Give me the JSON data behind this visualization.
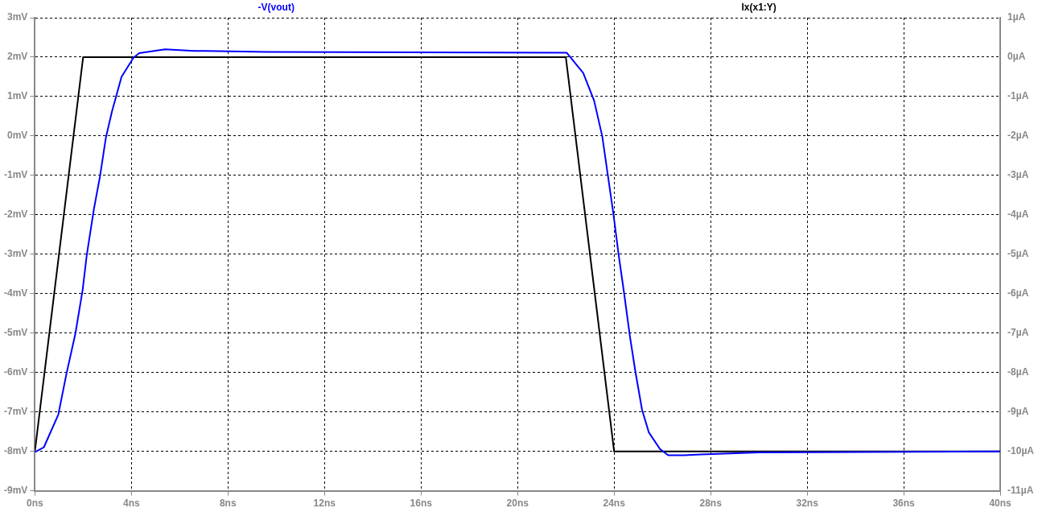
{
  "chart_data": {
    "type": "line",
    "xlim": [
      0,
      40
    ],
    "xticks": [
      {
        "value": 0,
        "label": "0ns"
      },
      {
        "value": 4,
        "label": "4ns"
      },
      {
        "value": 8,
        "label": "8ns"
      },
      {
        "value": 12,
        "label": "12ns"
      },
      {
        "value": 16,
        "label": "16ns"
      },
      {
        "value": 20,
        "label": "20ns"
      },
      {
        "value": 24,
        "label": "24ns"
      },
      {
        "value": 28,
        "label": "28ns"
      },
      {
        "value": 32,
        "label": "32ns"
      },
      {
        "value": 36,
        "label": "36ns"
      },
      {
        "value": 40,
        "label": "40ns"
      }
    ],
    "ylim": [
      -9,
      3
    ],
    "yticks": [
      {
        "value": -9,
        "label": "-9mV"
      },
      {
        "value": -8,
        "label": "-8mV"
      },
      {
        "value": -7,
        "label": "-7mV"
      },
      {
        "value": -6,
        "label": "-6mV"
      },
      {
        "value": -5,
        "label": "-5mV"
      },
      {
        "value": -4,
        "label": "-4mV"
      },
      {
        "value": -3,
        "label": "-3mV"
      },
      {
        "value": -2,
        "label": "-2mV"
      },
      {
        "value": -1,
        "label": "-1mV"
      },
      {
        "value": 0,
        "label": "0mV"
      },
      {
        "value": 1,
        "label": "1mV"
      },
      {
        "value": 2,
        "label": "2mV"
      },
      {
        "value": 3,
        "label": "3mV"
      }
    ],
    "y2lim": [
      -11,
      1
    ],
    "y2ticks": [
      {
        "value": -11,
        "label": "-11µA"
      },
      {
        "value": -10,
        "label": "-10µA"
      },
      {
        "value": -9,
        "label": "-9µA"
      },
      {
        "value": -8,
        "label": "-8µA"
      },
      {
        "value": -7,
        "label": "-7µA"
      },
      {
        "value": -6,
        "label": "-6µA"
      },
      {
        "value": -5,
        "label": "-5µA"
      },
      {
        "value": -4,
        "label": "-4µA"
      },
      {
        "value": -3,
        "label": "-3µA"
      },
      {
        "value": -2,
        "label": "-2µA"
      },
      {
        "value": -1,
        "label": "-1µA"
      },
      {
        "value": 0,
        "label": "0µA"
      },
      {
        "value": 1,
        "label": "1µA"
      }
    ],
    "grid": true,
    "legend": false,
    "marker": "none",
    "line_style": "solid",
    "series": [
      {
        "name": "-V(vout)",
        "color": "#0000ff",
        "x": [
          0,
          0.37,
          0.97,
          1.31,
          1.68,
          1.98,
          2.15,
          2.45,
          2.7,
          2.94,
          3.19,
          3.59,
          4.08,
          4.32,
          5.4,
          6.6,
          9.6,
          22.04,
          22.72,
          23.17,
          23.51,
          23.74,
          23.97,
          24.19,
          24.42,
          24.65,
          24.88,
          25.16,
          25.44,
          25.9,
          26.24,
          26.9,
          27.6,
          30,
          40
        ],
        "values": [
          -8.02,
          -7.9,
          -7.07,
          -6.03,
          -5.01,
          -3.9,
          -3.02,
          -1.84,
          -1.02,
          -0.05,
          0.61,
          1.5,
          1.98,
          2.1,
          2.2,
          2.16,
          2.13,
          2.11,
          1.6,
          0.9,
          -0.01,
          -0.99,
          -1.97,
          -3.02,
          -4.01,
          -5.06,
          -5.97,
          -6.95,
          -7.52,
          -7.94,
          -8.1,
          -8.1,
          -8.08,
          -8.03,
          -8
        ]
      },
      {
        "name": "Ix(x1:Y)",
        "color": "#000000",
        "axis": "y2",
        "x": [
          0,
          2,
          22,
          24,
          40
        ],
        "values": [
          -10,
          0,
          0,
          -10,
          -10
        ]
      }
    ]
  }
}
